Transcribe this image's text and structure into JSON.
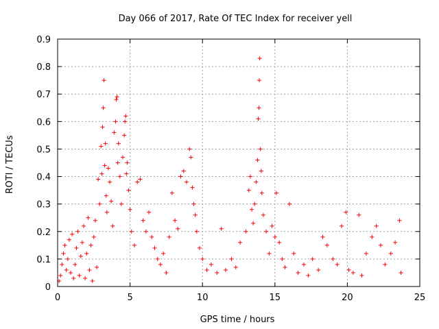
{
  "chart_data": {
    "type": "scatter",
    "title": "Day 066 of 2017, Rate Of TEC Index for receiver yell",
    "xlabel": "GPS time / hours",
    "ylabel": "ROTI / TECUs",
    "xlim": [
      0,
      25
    ],
    "ylim": [
      0,
      0.9
    ],
    "xticks": [
      0,
      5,
      10,
      15,
      20,
      25
    ],
    "yticks": [
      0,
      0.1,
      0.2,
      0.3,
      0.4,
      0.5,
      0.6,
      0.7,
      0.8,
      0.9
    ],
    "xtick_labels": [
      "0",
      "5",
      "10",
      "15",
      "20",
      "25"
    ],
    "ytick_labels": [
      "0",
      "0.1",
      "0.2",
      "0.3",
      "0.4",
      "0.5",
      "0.6",
      "0.7",
      "0.8",
      "0.9"
    ],
    "grid": true,
    "marker": "+",
    "color": "#ff0000",
    "series": [
      {
        "name": "ROTI",
        "points": [
          [
            0.1,
            0.02
          ],
          [
            0.2,
            0.04
          ],
          [
            0.3,
            0.08
          ],
          [
            0.4,
            0.12
          ],
          [
            0.5,
            0.15
          ],
          [
            0.6,
            0.06
          ],
          [
            0.7,
            0.1
          ],
          [
            0.8,
            0.17
          ],
          [
            0.9,
            0.05
          ],
          [
            1.0,
            0.19
          ],
          [
            1.1,
            0.03
          ],
          [
            1.2,
            0.08
          ],
          [
            1.3,
            0.14
          ],
          [
            1.4,
            0.2
          ],
          [
            1.5,
            0.04
          ],
          [
            1.6,
            0.11
          ],
          [
            1.7,
            0.16
          ],
          [
            1.8,
            0.22
          ],
          [
            1.9,
            0.03
          ],
          [
            2.0,
            0.12
          ],
          [
            2.1,
            0.25
          ],
          [
            2.2,
            0.06
          ],
          [
            2.3,
            0.15
          ],
          [
            2.4,
            0.02
          ],
          [
            2.5,
            0.18
          ],
          [
            2.6,
            0.24
          ],
          [
            2.7,
            0.07
          ],
          [
            2.8,
            0.39
          ],
          [
            2.9,
            0.3
          ],
          [
            3.0,
            0.51
          ],
          [
            3.05,
            0.41
          ],
          [
            3.1,
            0.58
          ],
          [
            3.15,
            0.65
          ],
          [
            3.2,
            0.75
          ],
          [
            3.25,
            0.44
          ],
          [
            3.3,
            0.52
          ],
          [
            3.35,
            0.33
          ],
          [
            3.4,
            0.27
          ],
          [
            3.5,
            0.43
          ],
          [
            3.6,
            0.38
          ],
          [
            3.7,
            0.31
          ],
          [
            3.8,
            0.22
          ],
          [
            3.9,
            0.56
          ],
          [
            4.0,
            0.6
          ],
          [
            4.05,
            0.68
          ],
          [
            4.1,
            0.69
          ],
          [
            4.15,
            0.45
          ],
          [
            4.2,
            0.52
          ],
          [
            4.3,
            0.4
          ],
          [
            4.4,
            0.3
          ],
          [
            4.5,
            0.47
          ],
          [
            4.6,
            0.55
          ],
          [
            4.65,
            0.6
          ],
          [
            4.7,
            0.62
          ],
          [
            4.75,
            0.41
          ],
          [
            4.8,
            0.45
          ],
          [
            4.9,
            0.35
          ],
          [
            5.0,
            0.28
          ],
          [
            5.1,
            0.2
          ],
          [
            5.3,
            0.15
          ],
          [
            5.5,
            0.38
          ],
          [
            5.7,
            0.39
          ],
          [
            5.9,
            0.24
          ],
          [
            6.1,
            0.2
          ],
          [
            6.3,
            0.27
          ],
          [
            6.5,
            0.18
          ],
          [
            6.7,
            0.14
          ],
          [
            6.9,
            0.1
          ],
          [
            7.1,
            0.08
          ],
          [
            7.3,
            0.12
          ],
          [
            7.5,
            0.05
          ],
          [
            7.7,
            0.18
          ],
          [
            7.9,
            0.34
          ],
          [
            8.1,
            0.24
          ],
          [
            8.3,
            0.21
          ],
          [
            8.5,
            0.4
          ],
          [
            8.7,
            0.42
          ],
          [
            8.9,
            0.38
          ],
          [
            9.1,
            0.5
          ],
          [
            9.2,
            0.47
          ],
          [
            9.3,
            0.36
          ],
          [
            9.4,
            0.3
          ],
          [
            9.5,
            0.26
          ],
          [
            9.6,
            0.2
          ],
          [
            9.8,
            0.14
          ],
          [
            10.0,
            0.1
          ],
          [
            10.3,
            0.06
          ],
          [
            10.6,
            0.08
          ],
          [
            11.0,
            0.05
          ],
          [
            11.3,
            0.21
          ],
          [
            11.6,
            0.06
          ],
          [
            12.0,
            0.1
          ],
          [
            12.3,
            0.07
          ],
          [
            12.6,
            0.16
          ],
          [
            13.0,
            0.2
          ],
          [
            13.2,
            0.35
          ],
          [
            13.3,
            0.4
          ],
          [
            13.4,
            0.28
          ],
          [
            13.5,
            0.23
          ],
          [
            13.6,
            0.3
          ],
          [
            13.7,
            0.38
          ],
          [
            13.8,
            0.46
          ],
          [
            13.85,
            0.61
          ],
          [
            13.9,
            0.65
          ],
          [
            13.92,
            0.75
          ],
          [
            13.95,
            0.83
          ],
          [
            14.0,
            0.5
          ],
          [
            14.05,
            0.42
          ],
          [
            14.1,
            0.34
          ],
          [
            14.2,
            0.26
          ],
          [
            14.4,
            0.2
          ],
          [
            14.6,
            0.12
          ],
          [
            14.8,
            0.22
          ],
          [
            15.0,
            0.18
          ],
          [
            15.1,
            0.34
          ],
          [
            15.3,
            0.16
          ],
          [
            15.5,
            0.1
          ],
          [
            15.7,
            0.07
          ],
          [
            16.0,
            0.3
          ],
          [
            16.3,
            0.12
          ],
          [
            16.6,
            0.05
          ],
          [
            17.0,
            0.08
          ],
          [
            17.3,
            0.04
          ],
          [
            17.6,
            0.1
          ],
          [
            18.0,
            0.06
          ],
          [
            18.3,
            0.18
          ],
          [
            18.6,
            0.15
          ],
          [
            19.0,
            0.1
          ],
          [
            19.3,
            0.08
          ],
          [
            19.6,
            0.22
          ],
          [
            19.9,
            0.27
          ],
          [
            20.1,
            0.06
          ],
          [
            20.4,
            0.05
          ],
          [
            20.8,
            0.26
          ],
          [
            21.0,
            0.04
          ],
          [
            21.3,
            0.12
          ],
          [
            21.7,
            0.18
          ],
          [
            22.0,
            0.22
          ],
          [
            22.3,
            0.15
          ],
          [
            22.6,
            0.08
          ],
          [
            23.0,
            0.12
          ],
          [
            23.3,
            0.16
          ],
          [
            23.6,
            0.24
          ],
          [
            23.7,
            0.05
          ]
        ]
      }
    ]
  }
}
